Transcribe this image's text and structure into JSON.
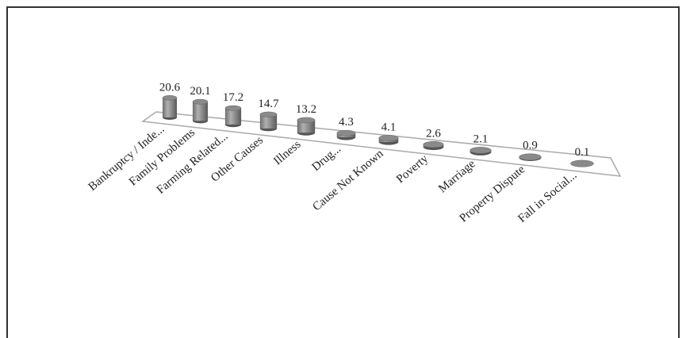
{
  "chart_data": {
    "type": "bar3d",
    "categories": [
      "Bankruptcy / Inde...",
      "Family Problems",
      "Farming Related...",
      "Other Causes",
      "Illness",
      "Drug...",
      "Cause Not Known",
      "Poverty",
      "Marriage",
      "Property Dispute",
      "Fall in Social..."
    ],
    "values": [
      20.6,
      20.1,
      17.2,
      14.7,
      13.2,
      4.3,
      4.1,
      2.6,
      2.1,
      0.9,
      0.1
    ],
    "color": "#8a8a8a"
  }
}
